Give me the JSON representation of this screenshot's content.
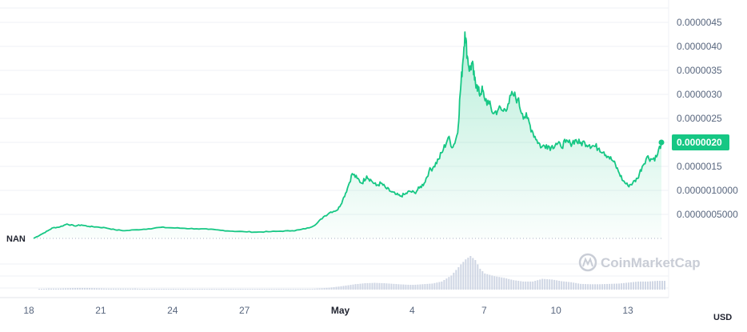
{
  "chart_data": {
    "type": "area",
    "currency": "USD",
    "start_label": "NAN",
    "watermark": "CoinMarketCap",
    "line_color": "#16c784",
    "volume_color": "#cfd6e4",
    "y_ticks": [
      "0.0000045",
      "0.0000040",
      "0.0000035",
      "0.0000030",
      "0.0000025",
      "0.0000015",
      "0.0000010000",
      "0.0000005000"
    ],
    "y_tick_values": [
      4.5e-06,
      4e-06,
      3.5e-06,
      3e-06,
      2.5e-06,
      1.5e-06,
      1e-06,
      5e-07
    ],
    "ylim": [
      0.0,
      4.8e-06
    ],
    "x_ticks": [
      {
        "label": "18",
        "day": 0,
        "bold": false
      },
      {
        "label": "21",
        "day": 3,
        "bold": false
      },
      {
        "label": "24",
        "day": 6,
        "bold": false
      },
      {
        "label": "27",
        "day": 9,
        "bold": false
      },
      {
        "label": "May",
        "day": 13,
        "bold": true
      },
      {
        "label": "4",
        "day": 16,
        "bold": false
      },
      {
        "label": "7",
        "day": 19,
        "bold": false
      },
      {
        "label": "10",
        "day": 22,
        "bold": false
      },
      {
        "label": "13",
        "day": 25,
        "bold": false
      }
    ],
    "xlim": [
      0,
      26.5
    ],
    "current_price": {
      "label": "0.0000020",
      "value": 2e-06
    },
    "price_series": [
      [
        0.2,
        0.0
      ],
      [
        0.5,
        8e-08
      ],
      [
        0.8,
        1.6e-07
      ],
      [
        1.0,
        2.2e-07
      ],
      [
        1.3,
        2.4e-07
      ],
      [
        1.6,
        3e-07
      ],
      [
        1.9,
        2.6e-07
      ],
      [
        2.2,
        2.8e-07
      ],
      [
        2.5,
        2.5e-07
      ],
      [
        2.8,
        2.4e-07
      ],
      [
        3.2,
        2.2e-07
      ],
      [
        3.6,
        1.8e-07
      ],
      [
        4.0,
        1.6e-07
      ],
      [
        4.5,
        1.8e-07
      ],
      [
        5.0,
        2e-07
      ],
      [
        5.5,
        2.3e-07
      ],
      [
        6.0,
        2.2e-07
      ],
      [
        6.5,
        2.1e-07
      ],
      [
        7.0,
        2e-07
      ],
      [
        7.5,
        1.9e-07
      ],
      [
        8.0,
        1.7e-07
      ],
      [
        8.5,
        1.5e-07
      ],
      [
        9.0,
        1.4e-07
      ],
      [
        9.5,
        1.3e-07
      ],
      [
        10.0,
        1.4e-07
      ],
      [
        10.5,
        1.5e-07
      ],
      [
        11.0,
        1.6e-07
      ],
      [
        11.3,
        1.8e-07
      ],
      [
        11.7,
        2.2e-07
      ],
      [
        12.0,
        3e-07
      ],
      [
        12.3,
        4.5e-07
      ],
      [
        12.6,
        5.5e-07
      ],
      [
        12.9,
        6e-07
      ],
      [
        13.1,
        8e-07
      ],
      [
        13.3,
        1.05e-06
      ],
      [
        13.5,
        1.35e-06
      ],
      [
        13.7,
        1.25e-06
      ],
      [
        13.9,
        1.15e-06
      ],
      [
        14.1,
        1.3e-06
      ],
      [
        14.3,
        1.2e-06
      ],
      [
        14.5,
        1.1e-06
      ],
      [
        14.7,
        1.15e-06
      ],
      [
        14.9,
        1.05e-06
      ],
      [
        15.1,
        9.8e-07
      ],
      [
        15.3,
        9.2e-07
      ],
      [
        15.5,
        8.8e-07
      ],
      [
        15.7,
        9.2e-07
      ],
      [
        15.9,
        9.8e-07
      ],
      [
        16.1,
        9.5e-07
      ],
      [
        16.3,
        1.05e-06
      ],
      [
        16.5,
        1.15e-06
      ],
      [
        16.7,
        1.4e-06
      ],
      [
        16.9,
        1.5e-06
      ],
      [
        17.1,
        1.65e-06
      ],
      [
        17.3,
        1.85e-06
      ],
      [
        17.5,
        2.1e-06
      ],
      [
        17.7,
        1.9e-06
      ],
      [
        17.9,
        2.2e-06
      ],
      [
        18.0,
        3e-06
      ],
      [
        18.1,
        3.6e-06
      ],
      [
        18.2,
        4.3e-06
      ],
      [
        18.3,
        3.8e-06
      ],
      [
        18.4,
        3.5e-06
      ],
      [
        18.5,
        3.65e-06
      ],
      [
        18.6,
        3.3e-06
      ],
      [
        18.7,
        3.2e-06
      ],
      [
        18.8,
        3e-06
      ],
      [
        18.9,
        3.1e-06
      ],
      [
        19.0,
        2.95e-06
      ],
      [
        19.2,
        2.8e-06
      ],
      [
        19.4,
        2.6e-06
      ],
      [
        19.6,
        2.7e-06
      ],
      [
        19.8,
        2.65e-06
      ],
      [
        20.0,
        2.8e-06
      ],
      [
        20.2,
        3e-06
      ],
      [
        20.4,
        2.9e-06
      ],
      [
        20.6,
        2.6e-06
      ],
      [
        20.8,
        2.5e-06
      ],
      [
        21.0,
        2.25e-06
      ],
      [
        21.2,
        2.05e-06
      ],
      [
        21.4,
        1.9e-06
      ],
      [
        21.6,
        1.95e-06
      ],
      [
        21.8,
        1.9e-06
      ],
      [
        22.0,
        1.98e-06
      ],
      [
        22.2,
        1.92e-06
      ],
      [
        22.4,
        2e-06
      ],
      [
        22.6,
        1.98e-06
      ],
      [
        22.8,
        2.05e-06
      ],
      [
        23.0,
        1.98e-06
      ],
      [
        23.2,
        2e-06
      ],
      [
        23.4,
        1.95e-06
      ],
      [
        23.6,
        1.92e-06
      ],
      [
        23.8,
        1.88e-06
      ],
      [
        24.0,
        1.8e-06
      ],
      [
        24.2,
        1.7e-06
      ],
      [
        24.4,
        1.6e-06
      ],
      [
        24.6,
        1.4e-06
      ],
      [
        24.8,
        1.2e-06
      ],
      [
        25.0,
        1.1e-06
      ],
      [
        25.2,
        1.15e-06
      ],
      [
        25.4,
        1.25e-06
      ],
      [
        25.6,
        1.5e-06
      ],
      [
        25.8,
        1.7e-06
      ],
      [
        26.0,
        1.65e-06
      ],
      [
        26.2,
        1.7e-06
      ],
      [
        26.4,
        2e-06
      ]
    ],
    "volume_series": [
      [
        0.4,
        0.02
      ],
      [
        0.8,
        0.03
      ],
      [
        1.2,
        0.03
      ],
      [
        1.6,
        0.04
      ],
      [
        2.0,
        0.05
      ],
      [
        2.4,
        0.05
      ],
      [
        2.8,
        0.04
      ],
      [
        3.2,
        0.03
      ],
      [
        3.6,
        0.03
      ],
      [
        4.0,
        0.03
      ],
      [
        4.4,
        0.03
      ],
      [
        4.8,
        0.02
      ],
      [
        5.2,
        0.01
      ],
      [
        5.6,
        0.01
      ],
      [
        6.0,
        0.01
      ],
      [
        6.4,
        0.01
      ],
      [
        6.8,
        0.01
      ],
      [
        7.2,
        0.01
      ],
      [
        7.6,
        0.01
      ],
      [
        8.0,
        0.01
      ],
      [
        8.4,
        0.01
      ],
      [
        8.8,
        0.01
      ],
      [
        9.2,
        0.01
      ],
      [
        9.6,
        0.01
      ],
      [
        10.0,
        0.01
      ],
      [
        10.4,
        0.01
      ],
      [
        10.8,
        0.01
      ],
      [
        11.2,
        0.02
      ],
      [
        11.6,
        0.02
      ],
      [
        12.0,
        0.03
      ],
      [
        12.4,
        0.05
      ],
      [
        12.8,
        0.08
      ],
      [
        13.2,
        0.12
      ],
      [
        13.6,
        0.16
      ],
      [
        14.0,
        0.19
      ],
      [
        14.4,
        0.2
      ],
      [
        14.8,
        0.19
      ],
      [
        15.2,
        0.17
      ],
      [
        15.6,
        0.15
      ],
      [
        16.0,
        0.14
      ],
      [
        16.4,
        0.16
      ],
      [
        16.8,
        0.18
      ],
      [
        17.2,
        0.24
      ],
      [
        17.6,
        0.42
      ],
      [
        18.0,
        0.75
      ],
      [
        18.2,
        0.9
      ],
      [
        18.4,
        1.0
      ],
      [
        18.6,
        0.88
      ],
      [
        18.8,
        0.62
      ],
      [
        19.0,
        0.48
      ],
      [
        19.4,
        0.4
      ],
      [
        19.8,
        0.35
      ],
      [
        20.2,
        0.28
      ],
      [
        20.6,
        0.24
      ],
      [
        21.0,
        0.24
      ],
      [
        21.4,
        0.32
      ],
      [
        21.8,
        0.3
      ],
      [
        22.2,
        0.25
      ],
      [
        22.6,
        0.22
      ],
      [
        23.0,
        0.17
      ],
      [
        23.4,
        0.16
      ],
      [
        23.8,
        0.16
      ],
      [
        24.2,
        0.17
      ],
      [
        24.6,
        0.18
      ],
      [
        25.0,
        0.21
      ],
      [
        25.4,
        0.24
      ],
      [
        25.8,
        0.24
      ],
      [
        26.2,
        0.26
      ]
    ]
  }
}
